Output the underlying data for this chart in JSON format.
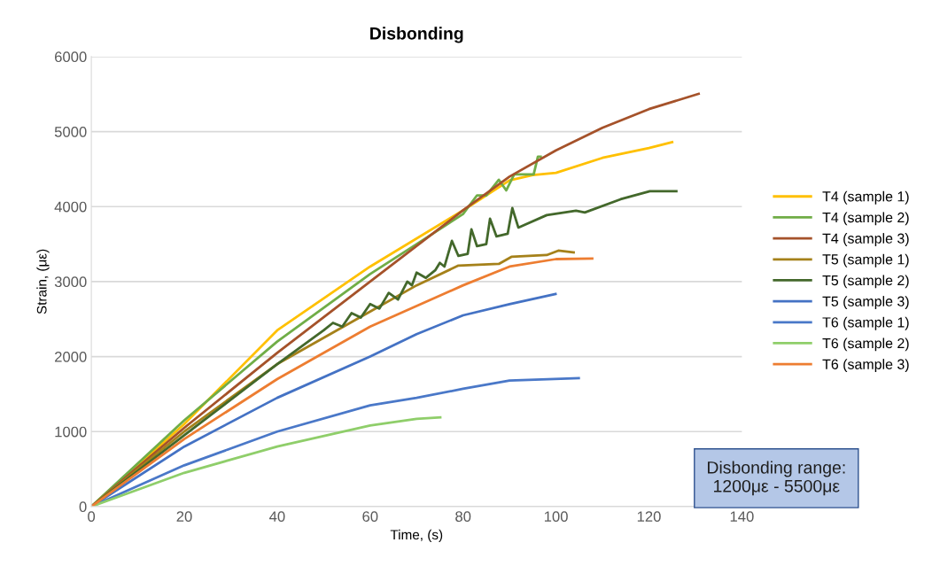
{
  "chart_data": {
    "type": "line",
    "title": "Disbonding",
    "xlabel": "Time, (s)",
    "ylabel": "Strain, (με)",
    "xlim": [
      0,
      140
    ],
    "xticks": [
      0,
      20,
      40,
      60,
      80,
      100,
      120,
      140
    ],
    "ylim": [
      0,
      6000
    ],
    "yticks": [
      0,
      1000,
      2000,
      3000,
      4000,
      5000,
      6000
    ],
    "grid": "y",
    "legend": "right",
    "marker": "none",
    "line_style": "solid",
    "annotations": [
      "Disbonding range:\n1200με - 5500με"
    ],
    "series": [
      {
        "name": "T4 (sample 1)",
        "color": "#ffc000",
        "x": [
          0,
          20,
          40,
          60,
          80,
          90,
          95,
          100,
          110,
          120,
          125
        ],
        "values": [
          0,
          1100,
          2350,
          3200,
          3950,
          4350,
          4420,
          4450,
          4650,
          4780,
          4860
        ]
      },
      {
        "name": "T4 (sample 2)",
        "color": "#70ad47",
        "x": [
          0,
          20,
          40,
          60,
          70,
          80,
          83,
          85,
          87.7,
          89.3,
          91,
          95.2,
          96.1,
          96.7
        ],
        "values": [
          0,
          1150,
          2200,
          3100,
          3500,
          3900,
          4150,
          4150,
          4358,
          4216,
          4430,
          4430,
          4665,
          4665
        ]
      },
      {
        "name": "T4 (sample 3)",
        "color": "#a5522a",
        "x": [
          0,
          20,
          40,
          60,
          80,
          90,
          100,
          110,
          120,
          130.7
        ],
        "values": [
          0,
          1050,
          2050,
          3000,
          3950,
          4400,
          4750,
          5050,
          5300,
          5504
        ]
      },
      {
        "name": "T5 (sample 1)",
        "color": "#a5811a",
        "x": [
          0,
          20,
          40,
          60,
          70,
          79,
          87.7,
          90.4,
          98,
          100.5,
          103.8
        ],
        "values": [
          0,
          1000,
          1900,
          2600,
          2950,
          3213,
          3236,
          3330,
          3354,
          3413,
          3390
        ]
      },
      {
        "name": "T5 (sample 2)",
        "color": "#43682b",
        "x": [
          0,
          20,
          40,
          50,
          52,
          54,
          56,
          58,
          60,
          62,
          64,
          66,
          68,
          69,
          70,
          72,
          74,
          75,
          76,
          77.6,
          79,
          81,
          81.8,
          83,
          85,
          85.8,
          87.2,
          89.6,
          90.6,
          91.9,
          98,
          104.3,
          106.2,
          113.9,
          120.2,
          125.9
        ],
        "values": [
          0,
          950,
          1900,
          2350,
          2450,
          2400,
          2580,
          2520,
          2700,
          2640,
          2850,
          2760,
          3000,
          2950,
          3120,
          3050,
          3150,
          3250,
          3200,
          3543,
          3342,
          3370,
          3697,
          3472,
          3500,
          3838,
          3602,
          3638,
          3980,
          3720,
          3886,
          3945,
          3921,
          4098,
          4205,
          4205
        ]
      },
      {
        "name": "T5 (sample 3)",
        "color": "#4472c4",
        "x": [
          0,
          20,
          40,
          60,
          70,
          80,
          90,
          99.9
        ],
        "values": [
          0,
          800,
          1450,
          2000,
          2300,
          2550,
          2700,
          2835
        ]
      },
      {
        "name": "T6 (sample 1)",
        "color": "#4a78c8",
        "x": [
          0,
          20,
          40,
          60,
          70,
          80,
          90,
          104.9
        ],
        "values": [
          0,
          550,
          1000,
          1350,
          1450,
          1570,
          1680,
          1713
        ]
      },
      {
        "name": "T6 (sample 2)",
        "color": "#8fce6a",
        "x": [
          0,
          20,
          40,
          60,
          70,
          75.1
        ],
        "values": [
          0,
          450,
          800,
          1080,
          1170,
          1190
        ]
      },
      {
        "name": "T6 (sample 3)",
        "color": "#ed7d31",
        "x": [
          0,
          20,
          40,
          60,
          80,
          90,
          100,
          107.8
        ],
        "values": [
          0,
          900,
          1700,
          2400,
          2950,
          3200,
          3300,
          3307
        ]
      }
    ]
  }
}
